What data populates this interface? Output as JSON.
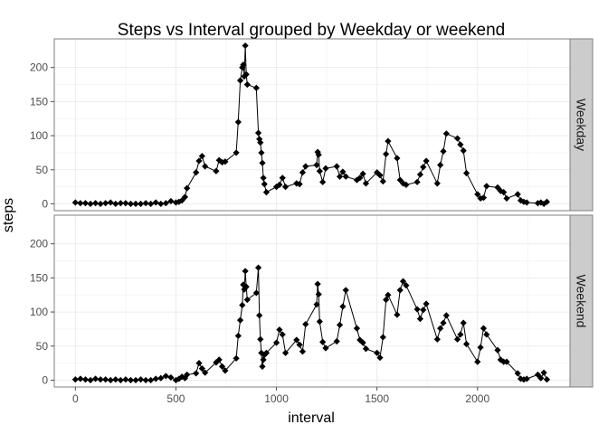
{
  "chart_data": {
    "type": "line",
    "title": "Steps vs Interval grouped by Weekday or weekend",
    "xlabel": "interval",
    "ylabel": "steps",
    "xlim": [
      -105,
      2460
    ],
    "ylim": [
      -10,
      242
    ],
    "x_ticks": [
      0,
      500,
      1000,
      1500,
      2000
    ],
    "y_ticks": [
      0,
      50,
      100,
      150,
      200
    ],
    "grid": true,
    "markers": "diamond",
    "facets": [
      {
        "label": "Weekday",
        "x": [
          0,
          25,
          50,
          75,
          100,
          125,
          150,
          175,
          200,
          225,
          250,
          275,
          300,
          325,
          350,
          375,
          400,
          425,
          450,
          475,
          500,
          515,
          530,
          545,
          555,
          600,
          615,
          630,
          645,
          700,
          715,
          730,
          745,
          800,
          810,
          820,
          830,
          835,
          840,
          845,
          850,
          855,
          900,
          910,
          915,
          920,
          925,
          930,
          935,
          940,
          950,
          1000,
          1015,
          1030,
          1045,
          1100,
          1115,
          1130,
          1145,
          1200,
          1205,
          1210,
          1215,
          1230,
          1245,
          1300,
          1315,
          1330,
          1345,
          1400,
          1415,
          1430,
          1445,
          1500,
          1515,
          1530,
          1545,
          1555,
          1600,
          1615,
          1630,
          1645,
          1700,
          1715,
          1730,
          1745,
          1800,
          1815,
          1830,
          1845,
          1900,
          1915,
          1930,
          1945,
          2000,
          2015,
          2030,
          2045,
          2100,
          2115,
          2130,
          2145,
          2200,
          2215,
          2230,
          2245,
          2300,
          2315,
          2330,
          2345
        ],
        "values": [
          2,
          1,
          1,
          0,
          1,
          0,
          1,
          2,
          0,
          1,
          1,
          0,
          0,
          0,
          1,
          0,
          2,
          0,
          1,
          4,
          2,
          3,
          5,
          10,
          23,
          46,
          63,
          70,
          55,
          48,
          64,
          61,
          62,
          75,
          120,
          181,
          200,
          204,
          187,
          232,
          190,
          175,
          170,
          104,
          95,
          90,
          75,
          60,
          38,
          29,
          17,
          25,
          28,
          38,
          25,
          30,
          29,
          46,
          55,
          57,
          76,
          72,
          48,
          32,
          52,
          55,
          40,
          47,
          40,
          35,
          38,
          44,
          30,
          46,
          42,
          33,
          73,
          92,
          67,
          35,
          30,
          28,
          32,
          43,
          54,
          63,
          30,
          57,
          77,
          103,
          96,
          87,
          78,
          45,
          14,
          8,
          9,
          26,
          24,
          19,
          17,
          8,
          14,
          5,
          3,
          2,
          1,
          2,
          0,
          3
        ]
      },
      {
        "label": "Weekend",
        "x": [
          0,
          25,
          50,
          75,
          100,
          125,
          150,
          175,
          200,
          225,
          250,
          275,
          300,
          325,
          350,
          375,
          400,
          425,
          450,
          475,
          500,
          515,
          530,
          545,
          555,
          600,
          615,
          630,
          645,
          700,
          715,
          730,
          745,
          800,
          810,
          820,
          830,
          835,
          840,
          845,
          850,
          855,
          900,
          910,
          915,
          920,
          925,
          930,
          935,
          940,
          950,
          1000,
          1015,
          1030,
          1045,
          1100,
          1115,
          1130,
          1145,
          1200,
          1205,
          1210,
          1215,
          1230,
          1245,
          1300,
          1315,
          1330,
          1345,
          1400,
          1415,
          1430,
          1445,
          1500,
          1515,
          1530,
          1545,
          1555,
          1600,
          1615,
          1630,
          1645,
          1700,
          1715,
          1730,
          1745,
          1800,
          1815,
          1830,
          1845,
          1900,
          1915,
          1930,
          1945,
          2000,
          2015,
          2030,
          2045,
          2100,
          2115,
          2130,
          2145,
          2200,
          2215,
          2230,
          2245,
          2300,
          2315,
          2330,
          2345
        ],
        "values": [
          1,
          2,
          1,
          0,
          2,
          1,
          1,
          0,
          1,
          0,
          1,
          0,
          0,
          1,
          0,
          0,
          2,
          3,
          6,
          4,
          0,
          2,
          5,
          3,
          8,
          10,
          25,
          17,
          11,
          26,
          30,
          20,
          14,
          32,
          65,
          88,
          110,
          140,
          133,
          160,
          137,
          118,
          128,
          165,
          95,
          60,
          40,
          20,
          30,
          37,
          40,
          55,
          74,
          67,
          40,
          59,
          52,
          42,
          82,
          111,
          141,
          126,
          86,
          56,
          47,
          57,
          81,
          108,
          132,
          76,
          59,
          55,
          46,
          40,
          33,
          63,
          118,
          125,
          96,
          132,
          145,
          139,
          104,
          90,
          103,
          112,
          60,
          76,
          84,
          95,
          60,
          67,
          84,
          53,
          27,
          48,
          76,
          67,
          44,
          30,
          27,
          27,
          10,
          2,
          1,
          2,
          8,
          3,
          11,
          1
        ]
      }
    ]
  }
}
